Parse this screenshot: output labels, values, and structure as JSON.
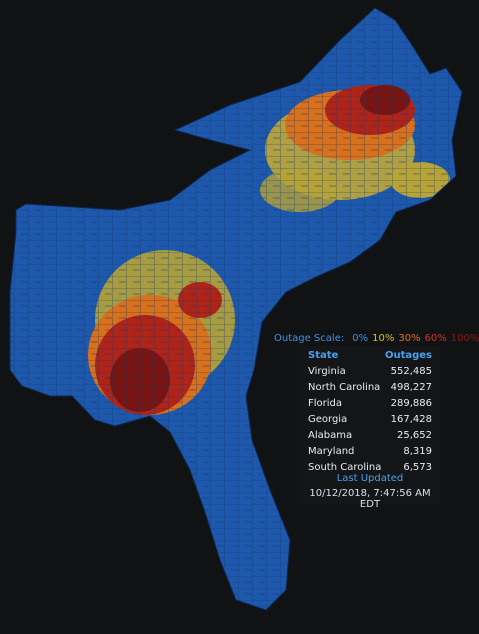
{
  "legend": {
    "title": "Outage Scale:",
    "levels": [
      {
        "label": "0%",
        "color": "#3a8fe0"
      },
      {
        "label": "10%",
        "color": "#d4c020"
      },
      {
        "label": "30%",
        "color": "#e07020"
      },
      {
        "label": "60%",
        "color": "#d03020"
      },
      {
        "label": "100%",
        "color": "#8a1a14"
      }
    ]
  },
  "table": {
    "headers": [
      "State",
      "Outages"
    ],
    "rows": [
      [
        "Virginia",
        "552,485"
      ],
      [
        "North Carolina",
        "498,227"
      ],
      [
        "Florida",
        "289,886"
      ],
      [
        "Georgia",
        "167,428"
      ],
      [
        "Alabama",
        "25,652"
      ],
      [
        "Maryland",
        "8,319"
      ],
      [
        "South Carolina",
        "6,573"
      ]
    ]
  },
  "updated": {
    "title": "Last Updated",
    "time": "10/12/2018, 7:47:56 AM EDT"
  }
}
